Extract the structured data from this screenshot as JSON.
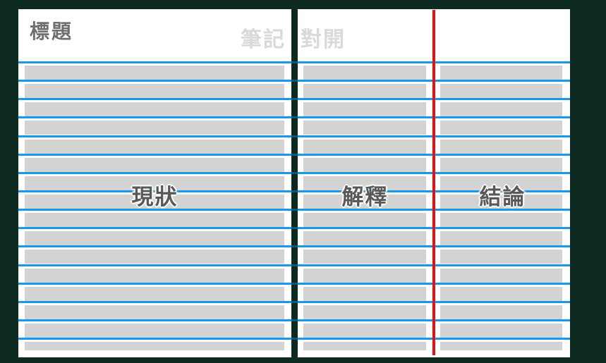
{
  "spread": {
    "title": "標題",
    "left_page": {
      "corner_label": "筆記",
      "center_label": "現狀"
    },
    "right_page": {
      "corner_label": "對開",
      "explanation_label": "解釋",
      "conclusion_label": "結論"
    }
  },
  "colors": {
    "background": "#0d2a20",
    "page": "#ffffff",
    "ruled_line": "#1798ec",
    "margin_line": "#e61212",
    "placeholder_bar": "#d3d3d3",
    "title_text": "#6f6f6f",
    "corner_label_text": "#d9d9d9",
    "section_label_text": "#585858"
  }
}
